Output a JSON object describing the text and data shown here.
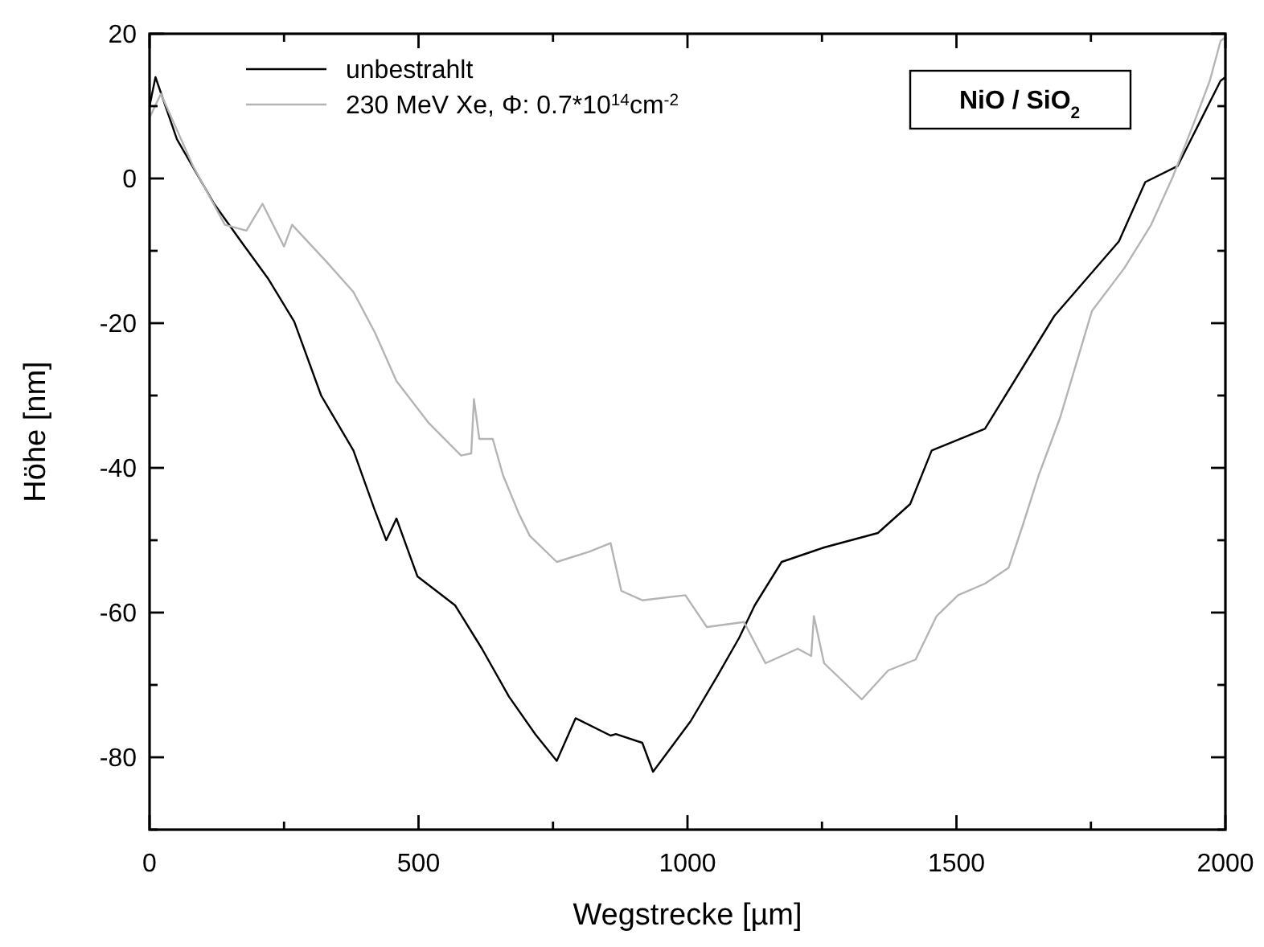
{
  "chart_data": {
    "type": "line",
    "xlabel": "Wegstrecke  [µm]",
    "ylabel": "Höhe  [nm]",
    "annotations": [
      "NiO / SiO$_{2}$"
    ],
    "xlim": [
      0,
      2000
    ],
    "ylim": [
      -90,
      20
    ],
    "xticks": [
      0,
      {
        "value": 250,
        "label": null
      },
      500,
      {
        "value": 750,
        "label": null
      },
      1000,
      {
        "value": 1250,
        "label": null
      },
      1500,
      {
        "value": 1750,
        "label": null
      },
      2000
    ],
    "yticks": [
      {
        "value": -90,
        "label": null
      },
      -80,
      {
        "value": -70,
        "label": null
      },
      -60,
      {
        "value": -50,
        "label": null
      },
      -40,
      {
        "value": -30,
        "label": null
      },
      -20,
      {
        "value": -10,
        "label": null
      },
      0,
      {
        "value": 10,
        "label": null
      },
      20
    ],
    "grid": false,
    "legend": "top left",
    "marker": "none",
    "line_style": "solid",
    "series": [
      {
        "name": "unbestrahlt",
        "color": "#000000",
        "x": [
          0,
          11,
          51,
          120,
          170,
          220,
          269,
          319,
          379,
          418,
          440,
          459,
          498,
          568,
          618,
          668,
          717,
          757,
          792,
          857,
          867,
          916,
          936,
          1006,
          1056,
          1096,
          1125,
          1175,
          1254,
          1354,
          1414,
          1454,
          1553,
          1682,
          1802,
          1851,
          1911,
          1951,
          1991,
          2000
        ],
        "values": [
          10,
          14,
          5.4,
          -3.5,
          -8.7,
          -13.8,
          -19.8,
          -30,
          -37.6,
          -45.7,
          -50,
          -47,
          -55,
          -59,
          -65,
          -71.6,
          -76.8,
          -80.5,
          -74.6,
          -77,
          -76.8,
          -78,
          -82,
          -75,
          -68.7,
          -63.5,
          -59,
          -53,
          -51,
          -49,
          -45,
          -37.6,
          -34.6,
          -19,
          -8.7,
          -0.5,
          1.7,
          7.6,
          13.5,
          14
        ]
      },
      {
        "name": "230 MeV Xe, Φ: 0.7*10$^{14}$cm$^{-2}$",
        "color": "#b4b4b4",
        "x": [
          0,
          21,
          81,
          140,
          180,
          210,
          250,
          265,
          330,
          379,
          419,
          459,
          519,
          579,
          598,
          603,
          613,
          638,
          657,
          687,
          707,
          757,
          817,
          857,
          877,
          916,
          996,
          1036,
          1105,
          1145,
          1205,
          1230,
          1235,
          1254,
          1324,
          1373,
          1424,
          1463,
          1503,
          1553,
          1597,
          1623,
          1653,
          1693,
          1752,
          1812,
          1862,
          1902,
          1941,
          1971,
          1991,
          2000
        ],
        "values": [
          8.4,
          11.7,
          1.7,
          -6.4,
          -7.2,
          -3.5,
          -9.4,
          -6.4,
          -11.6,
          -15.7,
          -21.3,
          -28,
          -33.8,
          -38.3,
          -38,
          -30.5,
          -36,
          -36,
          -41,
          -46.4,
          -49.4,
          -53,
          -51.6,
          -50.4,
          -57,
          -58.3,
          -57.6,
          -62,
          -61.3,
          -67,
          -65,
          -66,
          -60.5,
          -67,
          -72,
          -68,
          -66.5,
          -60.5,
          -57.6,
          -56,
          -53.8,
          -48,
          -41,
          -33,
          -18.3,
          -12.4,
          -6.4,
          0.2,
          7.6,
          13.5,
          19,
          19.5
        ]
      }
    ]
  }
}
